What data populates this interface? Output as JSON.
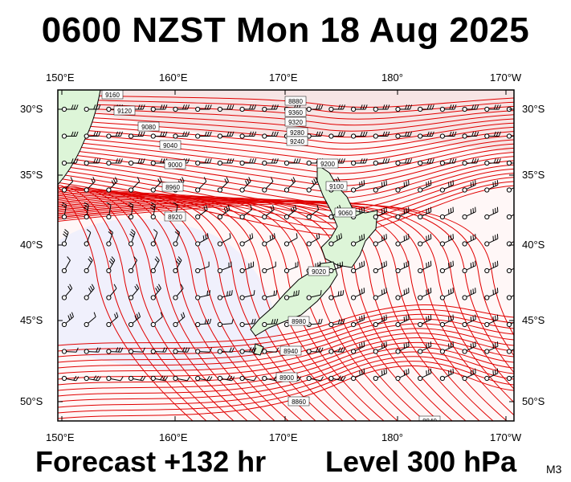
{
  "header": {
    "title": "0600 NZST Mon 18 Aug 2025"
  },
  "footer": {
    "forecast": "Forecast +132 hr",
    "level": "Level 300 hPa",
    "model": "M3"
  },
  "map": {
    "lon_labels": [
      "150°E",
      "160°E",
      "170°E",
      "180°",
      "170°W"
    ],
    "lat_labels": [
      "30°S",
      "35°S",
      "40°S",
      "45°S",
      "50°S"
    ],
    "contour_labels": [
      "9160",
      "9120",
      "9080",
      "9040",
      "9000",
      "8960",
      "8920",
      "8880",
      "9360",
      "9320",
      "9280",
      "9240",
      "9200",
      "9100",
      "9060",
      "9020",
      "8980",
      "8940",
      "8900",
      "8860",
      "8840"
    ],
    "colors": {
      "contour": "#e00000",
      "land": "#ddf5d8",
      "shade_high": "#f6e2e2",
      "shade_low": "#eeeefc",
      "coast": "#000000",
      "wind": "#000000"
    }
  }
}
